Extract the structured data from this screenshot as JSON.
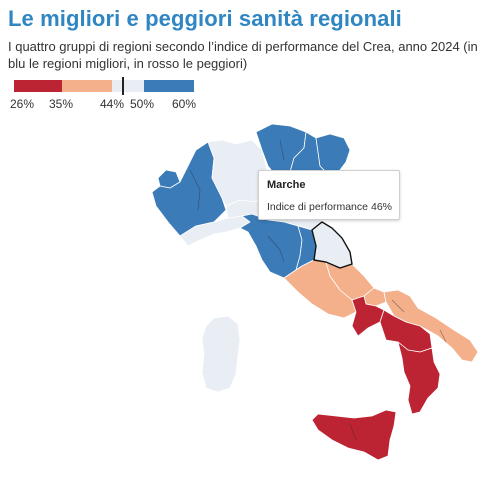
{
  "title": "Le migliori e peggiori sanità regionali",
  "subtitle": "I quattro gruppi di regioni secondo l’indice di performance del Crea, anno 2024 (in blu le regioni migliori, in rosso le peggiori)",
  "legend": {
    "breaks": [
      "26%",
      "35%",
      "44%",
      "50%",
      "60%"
    ],
    "break_values": [
      26,
      35,
      44,
      50,
      60
    ],
    "colors": [
      "#bd2433",
      "#f4af8b",
      "#e8eef3",
      "#3a7bb8"
    ],
    "marker_value": 46
  },
  "tooltip": {
    "region": "Marche",
    "label": "Indice di performance",
    "value": "46%"
  },
  "regions": [
    {
      "name": "Valle d'Aosta",
      "color": "#3a7bb8"
    },
    {
      "name": "Piemonte",
      "color": "#3a7bb8"
    },
    {
      "name": "Lombardia",
      "color": "#e8eef3"
    },
    {
      "name": "Trentino-Alto Adige",
      "color": "#3a7bb8"
    },
    {
      "name": "Veneto",
      "color": "#3a7bb8"
    },
    {
      "name": "Friuli-Venezia Giulia",
      "color": "#3a7bb8"
    },
    {
      "name": "Liguria",
      "color": "#e8eef3"
    },
    {
      "name": "Emilia-Romagna",
      "color": "#e8eef3"
    },
    {
      "name": "Toscana",
      "color": "#3a7bb8"
    },
    {
      "name": "Umbria",
      "color": "#3a7bb8"
    },
    {
      "name": "Marche",
      "color": "#e8eef3"
    },
    {
      "name": "Lazio",
      "color": "#f4af8b"
    },
    {
      "name": "Abruzzo",
      "color": "#f4af8b"
    },
    {
      "name": "Molise",
      "color": "#f4af8b"
    },
    {
      "name": "Campania",
      "color": "#bd2433"
    },
    {
      "name": "Puglia",
      "color": "#f4af8b"
    },
    {
      "name": "Basilicata",
      "color": "#bd2433"
    },
    {
      "name": "Calabria",
      "color": "#bd2433"
    },
    {
      "name": "Sicilia",
      "color": "#bd2433"
    },
    {
      "name": "Sardegna",
      "color": "#e8eef3"
    }
  ]
}
